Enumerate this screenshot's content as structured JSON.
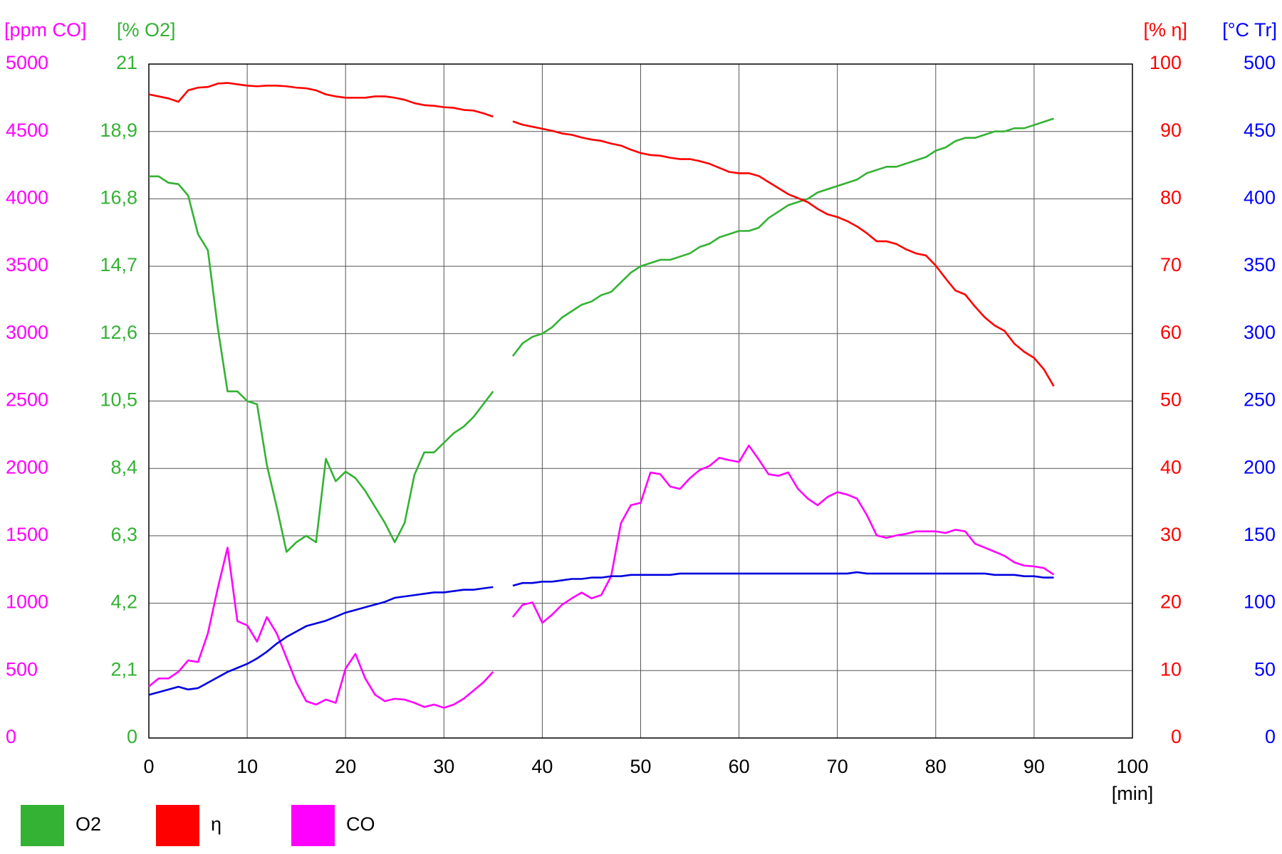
{
  "chart_data": {
    "type": "line",
    "x_axis": {
      "label": "[min]",
      "lim": [
        0,
        100
      ],
      "ticks": [
        0,
        10,
        20,
        30,
        40,
        50,
        60,
        70,
        80,
        90,
        100
      ]
    },
    "y_axes": [
      {
        "label": "[ppm CO]",
        "color": "#ff00ff",
        "lim": [
          0,
          5000
        ],
        "ticks": [
          0,
          500,
          1000,
          1500,
          2000,
          2500,
          3000,
          3500,
          4000,
          4500,
          5000
        ]
      },
      {
        "label": "[% O2]",
        "color": "#33b233",
        "lim": [
          0,
          21
        ],
        "ticks": [
          0,
          {
            "value": 2.1,
            "label": "2,1"
          },
          {
            "value": 4.2,
            "label": "4,2"
          },
          {
            "value": 6.3,
            "label": "6,3"
          },
          {
            "value": 8.4,
            "label": "8,4"
          },
          {
            "value": 10.5,
            "label": "10,5"
          },
          {
            "value": 12.6,
            "label": "12,6"
          },
          {
            "value": 14.7,
            "label": "14,7"
          },
          {
            "value": 16.8,
            "label": "16,8"
          },
          {
            "value": 18.9,
            "label": "18,9"
          },
          21
        ]
      },
      {
        "label": "[% η]",
        "color": "#ff0000",
        "lim": [
          0,
          100
        ],
        "ticks": [
          0,
          10,
          20,
          30,
          40,
          50,
          60,
          70,
          80,
          90,
          100
        ]
      },
      {
        "label": "[°C Tr]",
        "color": "#0000ff",
        "lim": [
          0,
          500
        ],
        "ticks": [
          0,
          50,
          100,
          150,
          200,
          250,
          300,
          350,
          400,
          450,
          500
        ]
      }
    ],
    "grid": true,
    "x": [
      0,
      1,
      2,
      3,
      4,
      5,
      6,
      7,
      8,
      9,
      10,
      11,
      12,
      13,
      14,
      15,
      16,
      17,
      18,
      19,
      20,
      21,
      22,
      23,
      24,
      25,
      26,
      27,
      28,
      29,
      30,
      31,
      32,
      33,
      34,
      35,
      36,
      37,
      38,
      39,
      40,
      41,
      42,
      43,
      44,
      45,
      46,
      47,
      48,
      49,
      50,
      51,
      52,
      53,
      54,
      55,
      56,
      57,
      58,
      59,
      60,
      61,
      62,
      63,
      64,
      65,
      66,
      67,
      68,
      69,
      70,
      71,
      72,
      73,
      74,
      75,
      76,
      77,
      78,
      79,
      80,
      81,
      82,
      83,
      84,
      85,
      86,
      87,
      88,
      89,
      90,
      91,
      92
    ],
    "series": [
      {
        "name": "O2",
        "color": "#33b233",
        "axis": 1,
        "values": [
          17.5,
          17.5,
          17.3,
          17.26,
          16.9,
          15.7,
          15.2,
          12.8,
          10.8,
          10.8,
          10.5,
          10.4,
          8.5,
          7.2,
          5.8,
          6.1,
          6.3,
          6.1,
          8.7,
          8.0,
          8.3,
          8.1,
          7.7,
          7.2,
          6.7,
          6.1,
          6.7,
          8.2,
          8.9,
          8.9,
          9.2,
          9.5,
          9.7,
          10.0,
          10.4,
          10.8,
          null,
          11.9,
          12.3,
          12.5,
          12.6,
          12.8,
          13.1,
          13.3,
          13.5,
          13.6,
          13.8,
          13.9,
          14.2,
          14.5,
          14.7,
          14.8,
          14.9,
          14.9,
          15.0,
          15.1,
          15.3,
          15.4,
          15.6,
          15.7,
          15.8,
          15.8,
          15.9,
          16.2,
          16.4,
          16.6,
          16.7,
          16.8,
          17.0,
          17.1,
          17.2,
          17.3,
          17.4,
          17.6,
          17.7,
          17.8,
          17.8,
          17.9,
          18.0,
          18.1,
          18.3,
          18.4,
          18.6,
          18.7,
          18.7,
          18.8,
          18.9,
          18.9,
          19.0,
          19.0,
          19.1,
          19.2,
          19.3
        ]
      },
      {
        "name": "η",
        "color": "#ff0000",
        "axis": 2,
        "values": [
          95.5,
          95.2,
          94.9,
          94.4,
          96.1,
          96.5,
          96.6,
          97.1,
          97.2,
          97.0,
          96.8,
          96.7,
          96.8,
          96.8,
          96.7,
          96.5,
          96.4,
          96.1,
          95.5,
          95.2,
          95.0,
          95.0,
          95.0,
          95.2,
          95.2,
          95.0,
          94.7,
          94.2,
          93.9,
          93.8,
          93.6,
          93.5,
          93.2,
          93.1,
          92.7,
          92.2,
          null,
          91.5,
          91.0,
          90.7,
          90.4,
          90.1,
          89.7,
          89.5,
          89.1,
          88.8,
          88.6,
          88.2,
          87.9,
          87.3,
          86.8,
          86.5,
          86.4,
          86.1,
          85.9,
          85.9,
          85.6,
          85.2,
          84.6,
          84.0,
          83.8,
          83.8,
          83.4,
          82.5,
          81.6,
          80.7,
          80.1,
          79.5,
          78.5,
          77.7,
          77.3,
          76.7,
          75.9,
          74.9,
          73.7,
          73.7,
          73.3,
          72.5,
          71.9,
          71.6,
          70.1,
          68.2,
          66.4,
          65.8,
          64.0,
          62.4,
          61.2,
          60.4,
          58.5,
          57.3,
          56.4,
          54.7,
          52.2
        ]
      },
      {
        "name": "CO",
        "color": "#ff00ff",
        "axis": 0,
        "values": [
          382,
          442,
          442,
          491,
          576,
          564,
          776,
          1109,
          1412,
          867,
          836,
          715,
          897,
          776,
          594,
          412,
          273,
          248,
          285,
          261,
          515,
          624,
          442,
          321,
          273,
          291,
          285,
          261,
          230,
          248,
          224,
          248,
          291,
          351,
          412,
          491,
          null,
          897,
          988,
          1006,
          855,
          915,
          988,
          1036,
          1079,
          1036,
          1061,
          1200,
          1594,
          1727,
          1745,
          1970,
          1957,
          1866,
          1848,
          1927,
          1988,
          2018,
          2079,
          2061,
          2048,
          2170,
          2067,
          1957,
          1945,
          1970,
          1848,
          1776,
          1727,
          1788,
          1824,
          1806,
          1776,
          1654,
          1503,
          1485,
          1503,
          1515,
          1533,
          1533,
          1533,
          1521,
          1545,
          1533,
          1442,
          1412,
          1382,
          1351,
          1303,
          1279,
          1273,
          1261,
          1212
        ]
      },
      {
        "color": "#0000e0",
        "axis": 3,
        "values": [
          32,
          34,
          36,
          38,
          36,
          37,
          41,
          45,
          49,
          52,
          55,
          59,
          64,
          70,
          75,
          79,
          83,
          85,
          87,
          90,
          93,
          95,
          97,
          99,
          101,
          104,
          105,
          106,
          107,
          108,
          108,
          109,
          110,
          110,
          111,
          112,
          null,
          113,
          115,
          115,
          116,
          116,
          117,
          118,
          118,
          119,
          119,
          120,
          120,
          121,
          121,
          121,
          121,
          121,
          122,
          122,
          122,
          122,
          122,
          122,
          122,
          122,
          122,
          122,
          122,
          122,
          122,
          122,
          122,
          122,
          122,
          122,
          123,
          122,
          122,
          122,
          122,
          122,
          122,
          122,
          122,
          122,
          122,
          122,
          122,
          122,
          121,
          121,
          121,
          120,
          120,
          119,
          119
        ]
      }
    ]
  }
}
